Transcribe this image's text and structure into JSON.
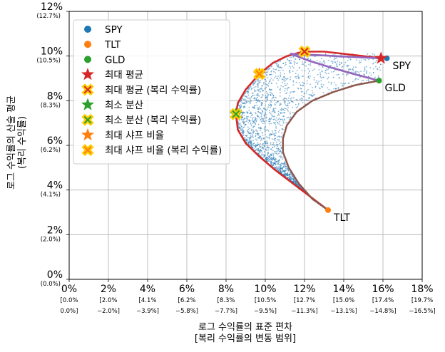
{
  "chart_data": {
    "type": "scatter",
    "xlabel": "로그 수익률의 표준 편차",
    "xlabel_sub": "[복리 수익률의 변동 범위]",
    "ylabel": "로그 수익률의 산술 평균",
    "ylabel_sub": "(복리 수익률)",
    "xlim": [
      0,
      18
    ],
    "ylim": [
      0,
      12
    ],
    "grid": true,
    "legend_position": "top-left",
    "x_ticks": [
      {
        "value": 0,
        "label": "0%",
        "sub1": "[0.0%",
        "sub2": "0.0%]"
      },
      {
        "value": 2,
        "label": "2%",
        "sub1": "[2.0%",
        "sub2": "−2.0%]"
      },
      {
        "value": 4,
        "label": "4%",
        "sub1": "[4.1%",
        "sub2": "−3.9%]"
      },
      {
        "value": 6,
        "label": "6%",
        "sub1": "[6.2%",
        "sub2": "−5.8%]"
      },
      {
        "value": 8,
        "label": "8%",
        "sub1": "[8.3%",
        "sub2": "−7.7%]"
      },
      {
        "value": 10,
        "label": "10%",
        "sub1": "[10.5%",
        "sub2": "−9.5%]"
      },
      {
        "value": 12,
        "label": "12%",
        "sub1": "[12.7%",
        "sub2": "−11.3%]"
      },
      {
        "value": 14,
        "label": "14%",
        "sub1": "[15.0%",
        "sub2": "−13.1%]"
      },
      {
        "value": 16,
        "label": "16%",
        "sub1": "[17.4%",
        "sub2": "−14.8%]"
      },
      {
        "value": 18,
        "label": "18%",
        "sub1": "[19.7%",
        "sub2": "−16.5%]"
      }
    ],
    "y_ticks": [
      {
        "value": 0,
        "label": "0%",
        "sub": "(0.0%)"
      },
      {
        "value": 2,
        "label": "2%",
        "sub": "(2.0%)"
      },
      {
        "value": 4,
        "label": "4%",
        "sub": "(4.1%)"
      },
      {
        "value": 6,
        "label": "6%",
        "sub": "(6.2%)"
      },
      {
        "value": 8,
        "label": "8%",
        "sub": "(8.3%)"
      },
      {
        "value": 10,
        "label": "10%",
        "sub": "(10.5%)"
      },
      {
        "value": 12,
        "label": "12%",
        "sub": "(12.7%)"
      }
    ],
    "assets": [
      {
        "name": "SPY",
        "x": 16.2,
        "y": 9.9,
        "color": "#1f77b4"
      },
      {
        "name": "TLT",
        "x": 13.2,
        "y": 3.1,
        "color": "#ff7f0e"
      },
      {
        "name": "GLD",
        "x": 15.8,
        "y": 8.9,
        "color": "#2ca02c"
      }
    ],
    "special_points": [
      {
        "name": "최대 평균",
        "x": 15.9,
        "y": 9.9,
        "marker": "star",
        "color": "#d62728"
      },
      {
        "name": "최대 평균 (복리 수익률)",
        "x": 12.0,
        "y": 10.2,
        "marker": "x",
        "color": "#d62728",
        "edge": "#ffcc00"
      },
      {
        "name": "최소 분산",
        "x": 8.5,
        "y": 7.4,
        "marker": "star",
        "color": "#2ca02c"
      },
      {
        "name": "최소 분산 (복리 수익률)",
        "x": 8.5,
        "y": 7.4,
        "marker": "x",
        "color": "#2ca02c",
        "edge": "#ffcc00"
      },
      {
        "name": "최대 샤프 비율",
        "x": 9.7,
        "y": 9.2,
        "marker": "star",
        "color": "#ff7f0e"
      },
      {
        "name": "최대 샤프 비율 (복리 수익률)",
        "x": 9.7,
        "y": 9.2,
        "marker": "x",
        "color": "#ff7f0e",
        "edge": "#ffcc00"
      }
    ],
    "frontier_curves": [
      {
        "color": "#d62728",
        "points": [
          [
            8.5,
            7.4
          ],
          [
            8.6,
            7.9
          ],
          [
            9.0,
            8.5
          ],
          [
            9.7,
            9.2
          ],
          [
            10.4,
            9.7
          ],
          [
            11.1,
            10.0
          ],
          [
            11.7,
            10.15
          ],
          [
            12.1,
            10.2
          ],
          [
            13.0,
            10.2
          ],
          [
            14.0,
            10.1
          ],
          [
            15.0,
            10.0
          ],
          [
            15.9,
            9.9
          ]
        ]
      },
      {
        "color": "#d62728",
        "points": [
          [
            13.2,
            3.1
          ],
          [
            12.3,
            3.7
          ],
          [
            11.4,
            4.3
          ],
          [
            10.5,
            4.9
          ],
          [
            9.7,
            5.5
          ],
          [
            9.0,
            6.1
          ],
          [
            8.6,
            6.7
          ],
          [
            8.5,
            7.4
          ]
        ]
      },
      {
        "color": "#8c564b",
        "points": [
          [
            13.2,
            3.1
          ],
          [
            12.4,
            3.6
          ],
          [
            11.7,
            4.3
          ],
          [
            11.2,
            5.0
          ],
          [
            10.9,
            5.7
          ],
          [
            10.9,
            6.3
          ],
          [
            11.1,
            6.9
          ],
          [
            11.6,
            7.5
          ],
          [
            12.4,
            8.0
          ],
          [
            13.5,
            8.4
          ],
          [
            14.6,
            8.7
          ],
          [
            15.8,
            8.9
          ]
        ]
      },
      {
        "color": "#9467bd",
        "points": [
          [
            11.3,
            10.1
          ],
          [
            12.5,
            10.05
          ],
          [
            13.6,
            10.0
          ],
          [
            14.7,
            9.95
          ],
          [
            15.9,
            9.9
          ]
        ]
      },
      {
        "color": "#9467bd",
        "points": [
          [
            11.3,
            10.1
          ],
          [
            12.2,
            9.8
          ],
          [
            13.3,
            9.5
          ],
          [
            14.5,
            9.2
          ],
          [
            15.8,
            8.9
          ]
        ]
      }
    ],
    "cloud": {
      "color": "#1f77b4",
      "min_x": 8.5,
      "max_x": 16.2,
      "min_y": 3.1,
      "max_y": 10.2
    },
    "legend": [
      {
        "label": "SPY",
        "marker": "circle",
        "color": "#1f77b4"
      },
      {
        "label": "TLT",
        "marker": "circle",
        "color": "#ff7f0e"
      },
      {
        "label": "GLD",
        "marker": "circle",
        "color": "#2ca02c"
      },
      {
        "label": "최대 평균",
        "marker": "star",
        "color": "#d62728"
      },
      {
        "label": "최대 평균 (복리 수익률)",
        "marker": "x",
        "color": "#d62728",
        "edge": "#ffcc00"
      },
      {
        "label": "최소 분산",
        "marker": "star",
        "color": "#2ca02c"
      },
      {
        "label": "최소 분산 (복리 수익률)",
        "marker": "x",
        "color": "#2ca02c",
        "edge": "#ffcc00"
      },
      {
        "label": "최대 샤프 비율",
        "marker": "star",
        "color": "#ff7f0e"
      },
      {
        "label": "최대 샤프 비율 (복리 수익률)",
        "marker": "x",
        "color": "#ff7f0e",
        "edge": "#ffcc00"
      }
    ]
  }
}
